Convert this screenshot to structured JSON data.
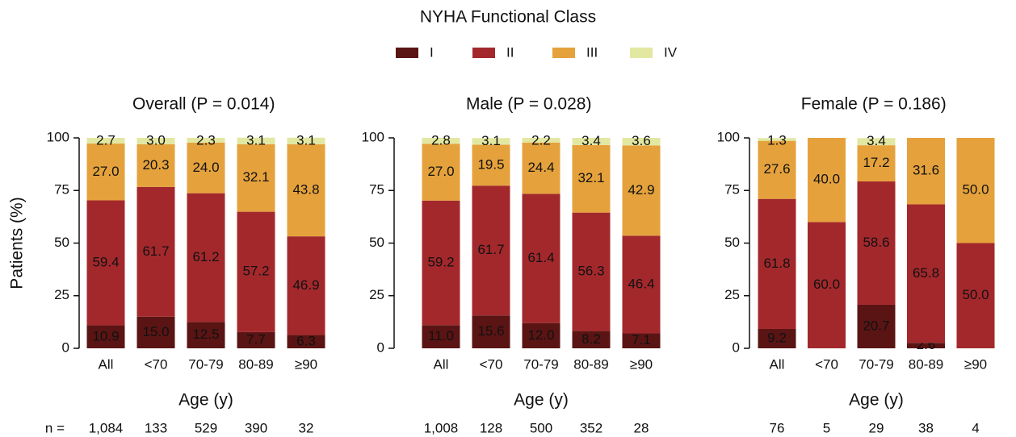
{
  "legend": {
    "title": "NYHA Functional Class",
    "entries": [
      {
        "name": "I",
        "color": "#5a1414"
      },
      {
        "name": "II",
        "color": "#a3282c"
      },
      {
        "name": "III",
        "color": "#e5a23c"
      },
      {
        "name": "IV",
        "color": "#e2e8a2"
      }
    ]
  },
  "chart_data": [
    {
      "type": "stacked-bar",
      "title": "Overall (P = 0.014)",
      "y_label": "Patients (%)",
      "x_label": "Age (y)",
      "categories": [
        "All",
        "<70",
        "70-79",
        "80-89",
        "≥90"
      ],
      "ylim": [
        0,
        100
      ],
      "yticks": [
        0,
        25,
        50,
        75,
        100
      ],
      "series": [
        {
          "values": [
            10.9,
            15,
            12.5,
            7.7,
            6.3
          ],
          "value_labels": [
            "10.9",
            "15.0",
            "12.5",
            "7.7",
            "6.3"
          ]
        },
        {
          "values": [
            59.4,
            61.7,
            61.2,
            57.2,
            46.9
          ],
          "value_labels": [
            "59.4",
            "61.7",
            "61.2",
            "57.2",
            "46.9"
          ]
        },
        {
          "values": [
            27,
            20.3,
            24,
            32.1,
            43.8
          ],
          "value_labels": [
            "27.0",
            "20.3",
            "24.0",
            "32.1",
            "43.8"
          ]
        },
        {
          "values": [
            2.7,
            3,
            2.3,
            3.1,
            3.1
          ],
          "value_labels": [
            "2.7",
            "3.0",
            "2.3",
            "3.1",
            "3.1"
          ]
        }
      ],
      "n_label": "n =",
      "n": [
        {
          "value": 1084,
          "label": "1,084"
        },
        133,
        529,
        390,
        32
      ]
    },
    {
      "type": "stacked-bar",
      "title": "Male (P = 0.028)",
      "x_label": "Age (y)",
      "categories": [
        "All",
        "<70",
        "70-79",
        "80-89",
        "≥90"
      ],
      "ylim": [
        0,
        100
      ],
      "yticks": [
        0,
        25,
        50,
        75,
        100
      ],
      "series": [
        {
          "values": [
            11,
            15.6,
            12,
            8.2,
            7.1
          ],
          "value_labels": [
            "11.0",
            "15.6",
            "12.0",
            "8.2",
            "7.1"
          ]
        },
        {
          "values": [
            59.2,
            61.7,
            61.4,
            56.3,
            46.4
          ],
          "value_labels": [
            "59.2",
            "61.7",
            "61.4",
            "56.3",
            "46.4"
          ]
        },
        {
          "values": [
            27,
            19.5,
            24.4,
            32.1,
            42.9
          ],
          "value_labels": [
            "27.0",
            "19.5",
            "24.4",
            "32.1",
            "42.9"
          ]
        },
        {
          "values": [
            2.8,
            3.1,
            2.2,
            3.4,
            3.6
          ],
          "value_labels": [
            "2.8",
            "3.1",
            "2.2",
            "3.4",
            "3.6"
          ]
        }
      ],
      "n": [
        {
          "value": 1008,
          "label": "1,008"
        },
        128,
        500,
        352,
        28
      ]
    },
    {
      "type": "stacked-bar",
      "title": "Female (P = 0.186)",
      "x_label": "Age (y)",
      "categories": [
        "All",
        "<70",
        "70-79",
        "80-89",
        "≥90"
      ],
      "ylim": [
        0,
        100
      ],
      "yticks": [
        0,
        25,
        50,
        75,
        100
      ],
      "series": [
        {
          "values": [
            9.2,
            null,
            20.7,
            2.6,
            null
          ],
          "value_labels": [
            "9.2",
            null,
            "20.7",
            "2.6",
            null
          ]
        },
        {
          "values": [
            61.8,
            60,
            58.6,
            65.8,
            50
          ],
          "value_labels": [
            "61.8",
            "60.0",
            "58.6",
            "65.8",
            "50.0"
          ]
        },
        {
          "values": [
            27.6,
            40,
            17.2,
            31.6,
            50
          ],
          "value_labels": [
            "27.6",
            "40.0",
            "17.2",
            "31.6",
            "50.0"
          ]
        },
        {
          "values": [
            1.3,
            null,
            3.4,
            null,
            null
          ],
          "value_labels": [
            "1.3",
            null,
            "3.4",
            null,
            null
          ]
        }
      ],
      "n": [
        76,
        5,
        29,
        38,
        4
      ]
    }
  ]
}
